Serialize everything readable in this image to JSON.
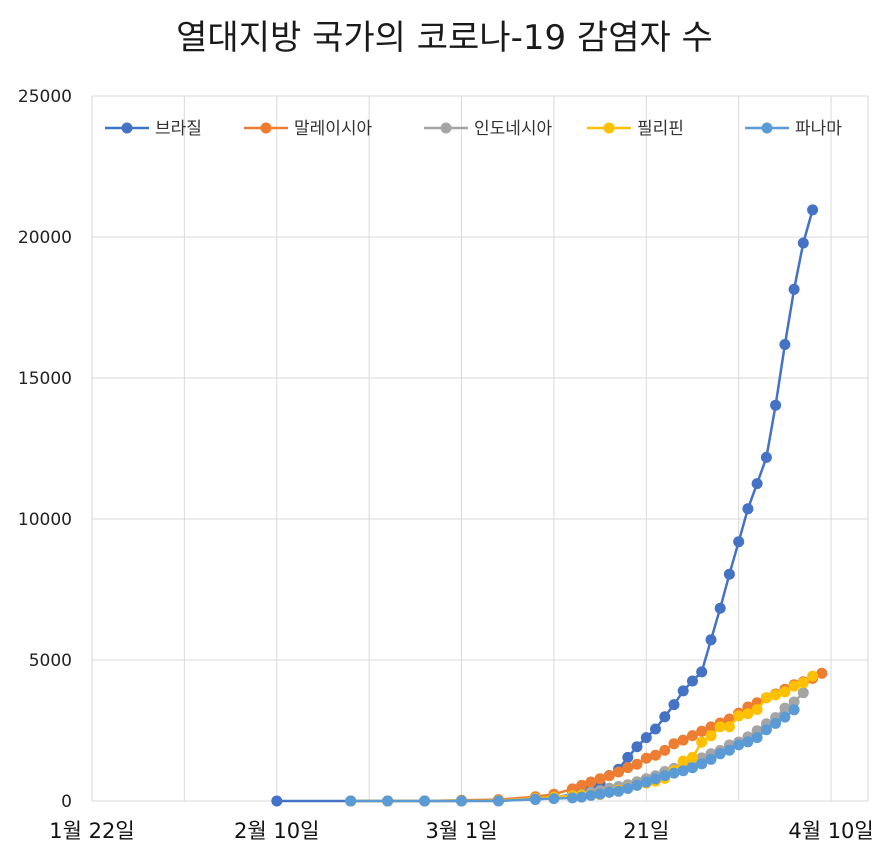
{
  "chart_data": {
    "type": "line",
    "title": "열대지방 국가의 코로나-19 감염자 수",
    "xlabel": "",
    "ylabel": "",
    "ylim": [
      0,
      25000
    ],
    "yticks": [
      0,
      5000,
      10000,
      15000,
      20000,
      25000
    ],
    "x_tick_labels": [
      {
        "day": 0,
        "label": "1월 22일"
      },
      {
        "day": 20,
        "label": "2월 10일"
      },
      {
        "day": 40,
        "label": "3월 1일"
      },
      {
        "day": 60,
        "label": "21일"
      },
      {
        "day": 80,
        "label": "4월 10일"
      }
    ],
    "grid": true,
    "legend_position": "top",
    "x": [
      20,
      28,
      32,
      36,
      40,
      44,
      48,
      50,
      52,
      53,
      54,
      55,
      56,
      57,
      58,
      59,
      60,
      61,
      62,
      63,
      64,
      65,
      66,
      67,
      68,
      69,
      70,
      71,
      72,
      73,
      74,
      75,
      76,
      77,
      78,
      79,
      80
    ],
    "series": [
      {
        "name": "브라질",
        "color": "#4472C4",
        "values": [
          0,
          0,
          0,
          0,
          2,
          20,
          52,
          121,
          234,
          291,
          428,
          621,
          904,
          1128,
          1546,
          1924,
          2247,
          2554,
          2985,
          3417,
          3904,
          4256,
          4579,
          5717,
          6836,
          8044,
          9194,
          10360,
          11254,
          12183,
          14034,
          16188,
          18145,
          19789,
          20962,
          null,
          null
        ]
      },
      {
        "name": "말레이시아",
        "color": "#ED7D31",
        "values": [
          null,
          0,
          0,
          0,
          24,
          50,
          149,
          238,
          428,
          553,
          673,
          790,
          900,
          1030,
          1183,
          1306,
          1518,
          1624,
          1796,
          2031,
          2161,
          2320,
          2470,
          2626,
          2766,
          2908,
          3116,
          3333,
          3483,
          3662,
          3793,
          3963,
          4119,
          4228,
          4346,
          4530,
          null
        ]
      },
      {
        "name": "인도네시아",
        "color": "#A5A5A5",
        "values": [
          null,
          0,
          0,
          0,
          2,
          6,
          69,
          134,
          172,
          227,
          309,
          369,
          450,
          514,
          579,
          686,
          790,
          893,
          1046,
          1155,
          1285,
          1414,
          1528,
          1677,
          1790,
          1986,
          2092,
          2273,
          2491,
          2738,
          2956,
          3293,
          3512,
          3842,
          null,
          null,
          null
        ]
      },
      {
        "name": "필리핀",
        "color": "#FFC000",
        "values": [
          null,
          0,
          0,
          0,
          3,
          10,
          98,
          140,
          187,
          202,
          217,
          230,
          307,
          380,
          462,
          552,
          636,
          707,
          803,
          1075,
          1418,
          1546,
          2084,
          2311,
          2633,
          2633,
          3018,
          3094,
          3246,
          3660,
          3764,
          3870,
          4076,
          4195,
          4428,
          null,
          null
        ]
      },
      {
        "name": "파나마",
        "color": "#5B9BD5",
        "values": [
          null,
          0,
          0,
          0,
          0,
          0,
          69,
          86,
          109,
          137,
          200,
          245,
          313,
          345,
          443,
          558,
          674,
          786,
          901,
          989,
          1075,
          1181,
          1317,
          1475,
          1673,
          1801,
          1988,
          2100,
          2249,
          2528,
          2752,
          2974,
          3234,
          null,
          null,
          null,
          null
        ]
      }
    ]
  }
}
